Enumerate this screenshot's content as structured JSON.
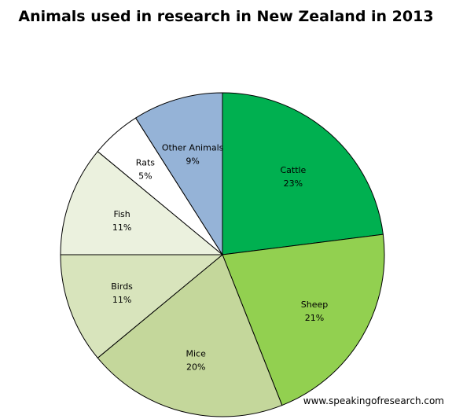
{
  "chart_data": {
    "type": "pie",
    "title": "Animals used in research in New Zealand in 2013",
    "slices": [
      {
        "label": "Cattle",
        "value": 23,
        "display": "23%",
        "color": "#00b050"
      },
      {
        "label": "Sheep",
        "value": 21,
        "display": "21%",
        "color": "#92d050"
      },
      {
        "label": "Mice",
        "value": 20,
        "display": "20%",
        "color": "#c4d79b"
      },
      {
        "label": "Birds",
        "value": 11,
        "display": "11%",
        "color": "#d8e4bc"
      },
      {
        "label": "Fish",
        "value": 11,
        "display": "11%",
        "color": "#ebf1de"
      },
      {
        "label": "Rats",
        "value": 5,
        "display": "5%",
        "color": "#ffffff"
      },
      {
        "label": "Other Animals",
        "value": 9,
        "display": "9%",
        "color": "#95b3d7"
      }
    ],
    "start_angle": "12 o'clock",
    "direction": "clockwise",
    "legend": "none"
  },
  "footer": {
    "source": "www.speakingofresearch.com"
  }
}
